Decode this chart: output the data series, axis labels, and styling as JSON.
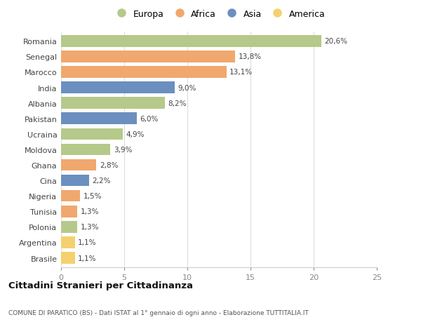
{
  "categories": [
    "Romania",
    "Senegal",
    "Marocco",
    "India",
    "Albania",
    "Pakistan",
    "Ucraina",
    "Moldova",
    "Ghana",
    "Cina",
    "Nigeria",
    "Tunisia",
    "Polonia",
    "Argentina",
    "Brasile"
  ],
  "values": [
    20.6,
    13.8,
    13.1,
    9.0,
    8.2,
    6.0,
    4.9,
    3.9,
    2.8,
    2.2,
    1.5,
    1.3,
    1.3,
    1.1,
    1.1
  ],
  "labels": [
    "20,6%",
    "13,8%",
    "13,1%",
    "9,0%",
    "8,2%",
    "6,0%",
    "4,9%",
    "3,9%",
    "2,8%",
    "2,2%",
    "1,5%",
    "1,3%",
    "1,3%",
    "1,1%",
    "1,1%"
  ],
  "continents": [
    "Europa",
    "Africa",
    "Africa",
    "Asia",
    "Europa",
    "Asia",
    "Europa",
    "Europa",
    "Africa",
    "Asia",
    "Africa",
    "Africa",
    "Europa",
    "America",
    "America"
  ],
  "colors": {
    "Europa": "#b5c98a",
    "Africa": "#f0a86e",
    "Asia": "#6b8fbf",
    "America": "#f5d06e"
  },
  "legend_labels": [
    "Europa",
    "Africa",
    "Asia",
    "America"
  ],
  "title": "Cittadini Stranieri per Cittadinanza",
  "subtitle": "COMUNE DI PARATICO (BS) - Dati ISTAT al 1° gennaio di ogni anno - Elaborazione TUTTITALIA.IT",
  "xlim": [
    0,
    25
  ],
  "xticks": [
    0,
    5,
    10,
    15,
    20,
    25
  ],
  "background_color": "#ffffff",
  "grid_color": "#dddddd",
  "bar_height": 0.75
}
